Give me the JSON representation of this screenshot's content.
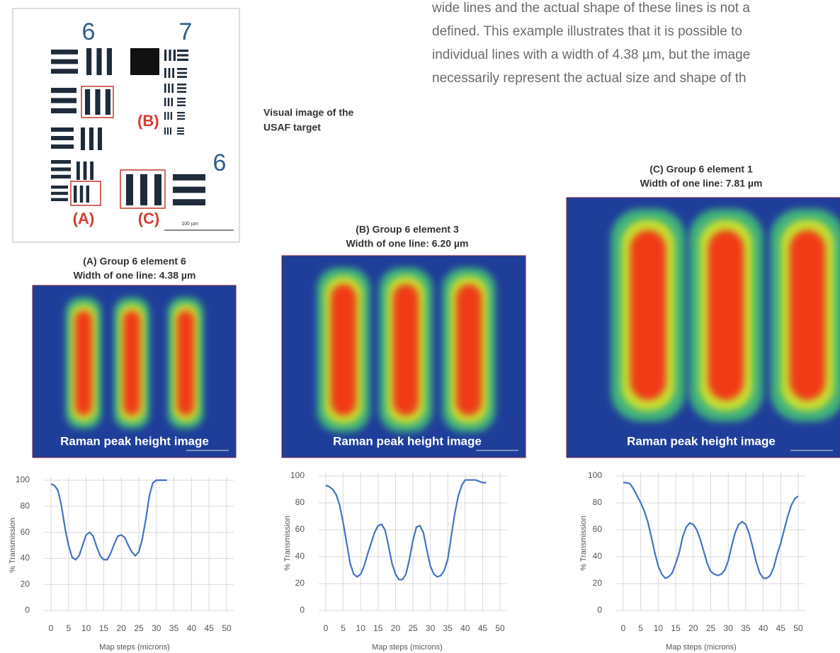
{
  "paragraph": [
    "wide lines and the actual shape of these lines is not a",
    "defined. This example illustrates that it is possible to",
    "individual lines with a width of 4.38 µm, but the image",
    "necessarily represent the actual size and shape of th"
  ],
  "target": {
    "caption": [
      "Visual image of the",
      "USAF target"
    ],
    "labels": {
      "group_6_top": "6",
      "group_7": "7",
      "group_6_right": "6",
      "a": "(A)",
      "b": "(B)",
      "c": "(C)",
      "scale": "100 µm"
    }
  },
  "panels": [
    {
      "title": [
        "(A) Group 6 element 6",
        "Width of one line: 4.38 µm"
      ],
      "label": "Raman peak height image"
    },
    {
      "title": [
        "(B) Group 6 element 3",
        "Width of one line: 6.20 µm"
      ],
      "label": "Raman peak height image"
    },
    {
      "title": [
        "(C) Group 6 element 1",
        "Width of one line: 7.81 µm"
      ],
      "label": "Raman peak height image"
    }
  ],
  "chart_data": [
    {
      "type": "line",
      "xlabel": "Map steps (microns)",
      "ylabel": "% Transmission",
      "x": [
        0,
        1,
        2,
        3,
        4,
        5,
        6,
        7,
        8,
        9,
        10,
        11,
        12,
        13,
        14,
        15,
        16,
        17,
        18,
        19,
        20,
        21,
        22,
        23,
        24,
        25,
        26,
        27,
        28,
        29,
        30,
        31,
        32,
        33
      ],
      "series": [
        {
          "color": "#4472c4",
          "values": [
            97,
            96,
            92,
            80,
            63,
            50,
            41,
            39,
            42,
            50,
            58,
            60,
            57,
            49,
            42,
            39,
            39,
            44,
            51,
            57,
            58,
            56,
            50,
            45,
            42,
            45,
            55,
            70,
            88,
            98,
            100,
            100,
            100,
            100
          ]
        }
      ],
      "xlim": [
        0,
        50
      ],
      "ylim": [
        0,
        100
      ],
      "xticks": [
        0,
        5,
        10,
        15,
        20,
        25,
        30,
        35,
        40,
        45,
        50
      ],
      "yticks": [
        0,
        20,
        40,
        60,
        80,
        100
      ],
      "grid": true
    },
    {
      "type": "line",
      "xlabel": "Map steps (microns)",
      "ylabel": "% Transmission",
      "x": [
        0,
        1,
        2,
        3,
        4,
        5,
        6,
        7,
        8,
        9,
        10,
        11,
        12,
        13,
        14,
        15,
        16,
        17,
        18,
        19,
        20,
        21,
        22,
        23,
        24,
        25,
        26,
        27,
        28,
        29,
        30,
        31,
        32,
        33,
        34,
        35,
        36,
        37,
        38,
        39,
        40,
        41,
        42,
        43,
        44,
        45,
        46
      ],
      "series": [
        {
          "color": "#4472c4",
          "values": [
            93,
            92,
            90,
            86,
            78,
            65,
            50,
            35,
            27,
            25,
            27,
            33,
            42,
            50,
            58,
            63,
            64,
            60,
            48,
            35,
            27,
            23,
            23,
            27,
            38,
            52,
            62,
            63,
            58,
            45,
            33,
            27,
            25,
            26,
            30,
            38,
            55,
            72,
            85,
            93,
            97,
            97,
            97,
            97,
            96,
            95,
            95
          ]
        }
      ],
      "xlim": [
        0,
        50
      ],
      "ylim": [
        0,
        100
      ],
      "xticks": [
        0,
        5,
        10,
        15,
        20,
        25,
        30,
        35,
        40,
        45,
        50
      ],
      "yticks": [
        0,
        20,
        40,
        60,
        80,
        100
      ],
      "grid": true
    },
    {
      "type": "line",
      "xlabel": "Map steps (microns)",
      "ylabel": "% Transmission",
      "x": [
        0,
        1,
        2,
        3,
        4,
        5,
        6,
        7,
        8,
        9,
        10,
        11,
        12,
        13,
        14,
        15,
        16,
        17,
        18,
        19,
        20,
        21,
        22,
        23,
        24,
        25,
        26,
        27,
        28,
        29,
        30,
        31,
        32,
        33,
        34,
        35,
        36,
        37,
        38,
        39,
        40,
        41,
        42,
        43,
        44,
        45,
        46,
        47,
        48,
        49,
        50
      ],
      "series": [
        {
          "color": "#4472c4",
          "values": [
            95,
            95,
            94,
            90,
            85,
            80,
            74,
            66,
            55,
            43,
            33,
            27,
            24,
            25,
            28,
            35,
            43,
            55,
            62,
            65,
            64,
            60,
            53,
            44,
            35,
            29,
            27,
            26,
            27,
            30,
            37,
            48,
            58,
            64,
            66,
            64,
            57,
            47,
            36,
            28,
            24,
            24,
            26,
            32,
            42,
            50,
            60,
            70,
            78,
            83,
            85
          ]
        }
      ],
      "xlim": [
        0,
        50
      ],
      "ylim": [
        0,
        100
      ],
      "xticks": [
        0,
        5,
        10,
        15,
        20,
        25,
        30,
        35,
        40,
        45,
        50
      ],
      "yticks": [
        0,
        20,
        40,
        60,
        80,
        100
      ],
      "grid": true
    }
  ]
}
